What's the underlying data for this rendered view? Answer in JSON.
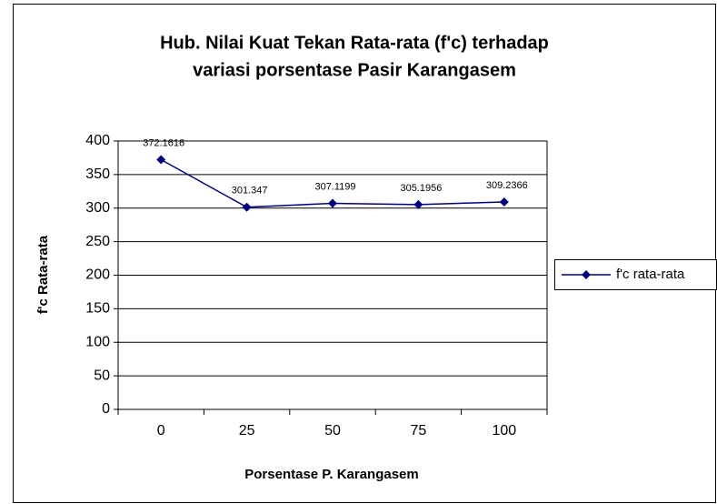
{
  "chart_data": {
    "type": "line",
    "title": [
      "Hub. Nilai Kuat Tekan Rata-rata (f'c) terhadap",
      "variasi porsentase Pasir Karangasem"
    ],
    "x_label": "Porsentase P. Karangasem",
    "y_label": "f'c Rata-rata",
    "categories": [
      "0",
      "25",
      "50",
      "75",
      "100"
    ],
    "series": [
      {
        "name": "f'c rata-rata",
        "color": "#000080",
        "values": [
          372.1616,
          301.347,
          307.1199,
          305.1956,
          309.2366
        ]
      }
    ],
    "ylim": [
      0,
      400
    ],
    "yticks": [
      0,
      50,
      100,
      150,
      200,
      250,
      300,
      350,
      400
    ],
    "grid": true,
    "legend": "right"
  }
}
